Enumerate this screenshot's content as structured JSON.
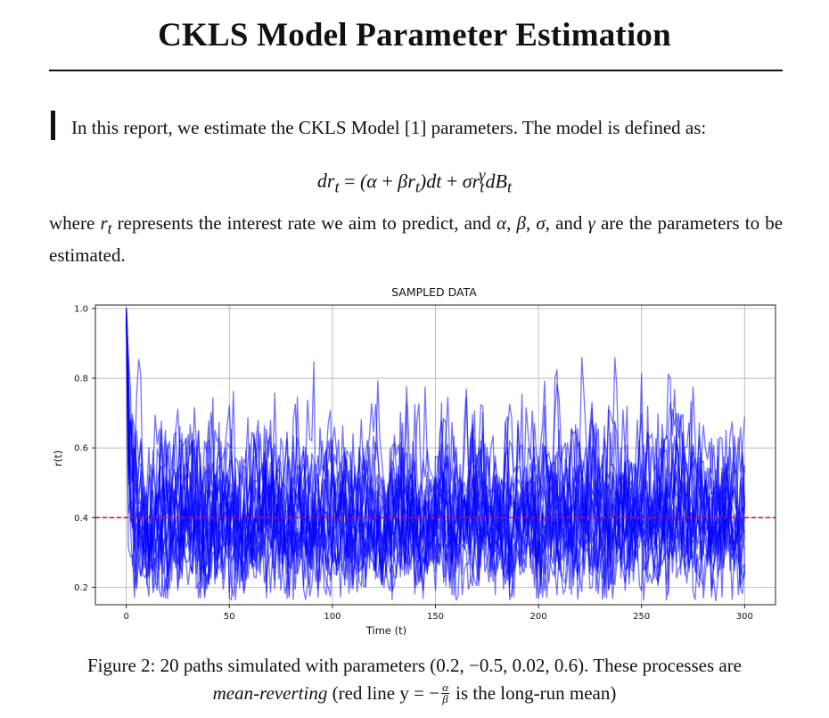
{
  "document": {
    "title": "CKLS Model Parameter Estimation",
    "intro": "In this report, we estimate the CKLS Model [1] parameters. The model is defined as:",
    "equation": "dr_t = (α + βr_t)dt + σr_t^γ dB_t",
    "where_text": "where r_t represents the interest rate we aim to predict, and α, β, σ, and γ are the parameters to be estimated.",
    "caption_line1": "Figure 2: 20 paths simulated with parameters (0.2, −0.5, 0.02, 0.6). These processes are",
    "caption_line2_italic": "mean-reverting",
    "caption_line2_rest": " (red line y = −",
    "caption_frac_num": "α",
    "caption_frac_den": "β",
    "caption_line2_end": " is the long-run mean)"
  },
  "chart_data": {
    "type": "line",
    "title": "SAMPLED DATA",
    "xlabel": "Time (t)",
    "ylabel": "r(t)",
    "xlim": [
      -15,
      315
    ],
    "ylim": [
      0.15,
      1.01
    ],
    "xticks": [
      0,
      50,
      100,
      150,
      200,
      250,
      300
    ],
    "yticks": [
      0.2,
      0.4,
      0.6,
      0.8,
      1.0
    ],
    "ytick_labels": [
      "0.2",
      "0.4",
      "0.6",
      "0.8",
      "1.0"
    ],
    "grid": true,
    "num_paths": 20,
    "path_length": 301,
    "initial_value": 1.0,
    "parameters": {
      "alpha": 0.2,
      "beta": -0.5,
      "sigma": 0.02,
      "gamma": 0.6
    },
    "long_run_mean": 0.4,
    "series_color": "#0000ff",
    "mean_line_color": "#ff0000"
  }
}
